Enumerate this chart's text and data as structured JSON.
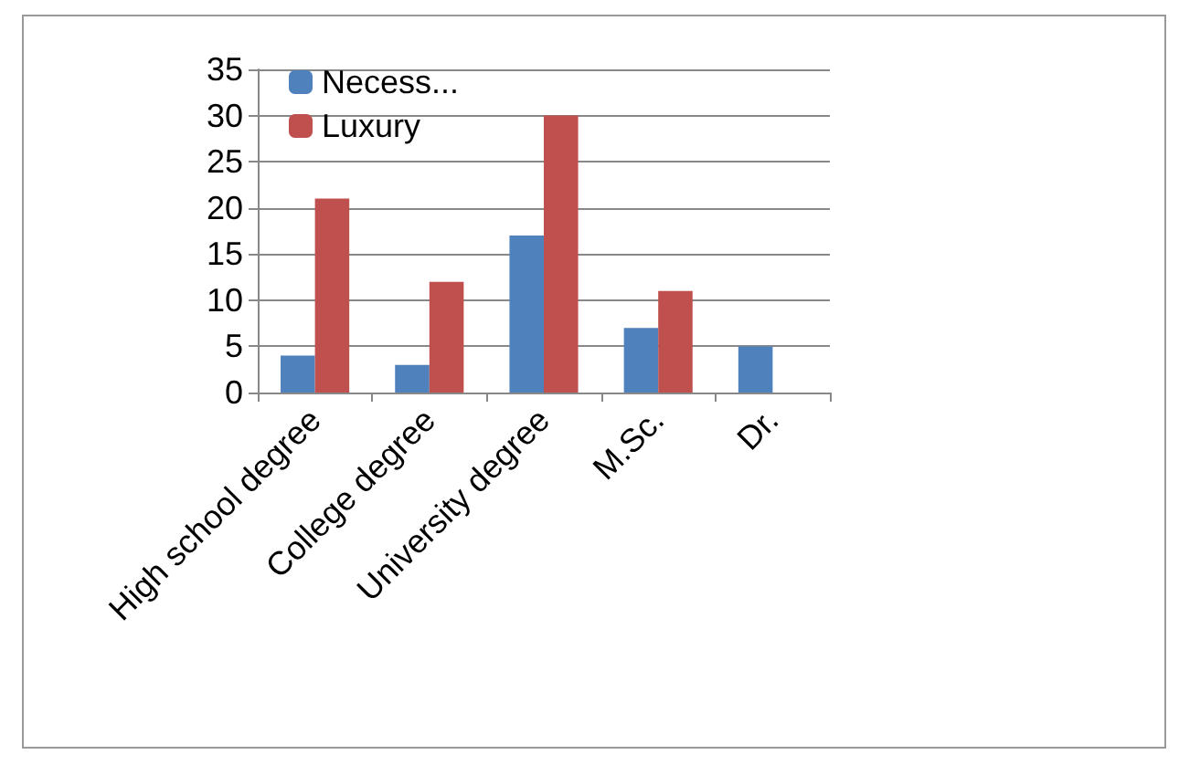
{
  "chart_data": {
    "type": "bar",
    "categories": [
      "High school degree",
      "College degree",
      "University degree",
      "M.Sc.",
      "Dr."
    ],
    "series": [
      {
        "name": "Necess...",
        "color": "#4f81bd",
        "values": [
          4,
          3,
          17,
          7,
          5
        ]
      },
      {
        "name": "Luxury",
        "color": "#c0504d",
        "values": [
          21,
          12,
          30,
          11,
          null
        ]
      }
    ],
    "ylim": [
      0,
      35
    ],
    "yticks": [
      0,
      5,
      10,
      15,
      20,
      25,
      30,
      35
    ],
    "grid": "y",
    "legend": "top left"
  }
}
